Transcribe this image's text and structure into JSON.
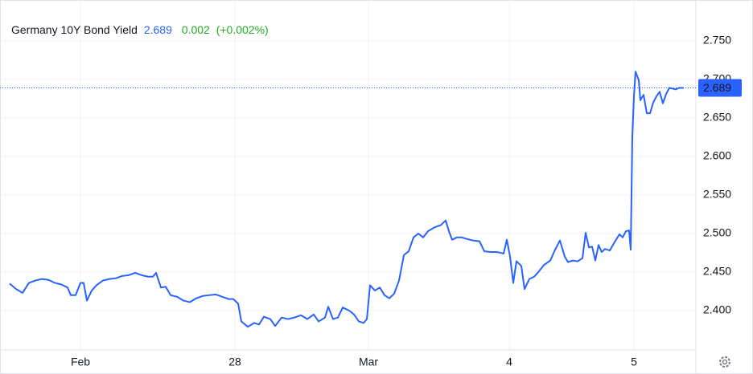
{
  "chart_data": {
    "type": "line",
    "title": "Germany 10Y Bond Yield",
    "price": 2.689,
    "change": 0.002,
    "change_percent": {
      "value": 0.002,
      "label": "(+0.002%)"
    },
    "x": [
      2,
      10,
      18,
      26,
      34,
      42,
      50,
      58,
      66,
      74,
      78,
      84,
      90,
      94,
      98,
      104,
      110,
      118,
      126,
      134,
      142,
      150,
      158,
      166,
      174,
      180,
      184,
      190,
      196,
      202,
      210,
      218,
      226,
      234,
      242,
      250,
      258,
      266,
      274,
      280,
      286,
      290,
      298,
      306,
      312,
      318,
      326,
      332,
      340,
      348,
      356,
      364,
      372,
      380,
      386,
      394,
      398,
      404,
      410,
      416,
      424,
      430,
      436,
      442,
      446,
      450,
      456,
      462,
      468,
      474,
      480,
      486,
      492,
      498,
      504,
      510,
      516,
      522,
      530,
      538,
      544,
      548,
      552,
      558,
      564,
      570,
      578,
      586,
      592,
      600,
      608,
      616,
      620,
      624,
      628,
      632,
      638,
      642,
      648,
      654,
      660,
      666,
      674,
      680,
      686,
      692,
      696,
      702,
      708,
      714,
      718,
      722,
      726,
      730,
      734,
      738,
      742,
      748,
      754,
      760,
      764,
      768,
      772,
      774,
      776,
      778,
      780,
      784,
      786,
      790,
      794,
      798,
      802,
      806,
      810,
      814,
      818,
      822,
      826,
      830,
      834,
      840
    ],
    "series": [
      {
        "name": "Germany 10Y Bond Yield",
        "color": "#2962ff",
        "values": [
          2.435,
          2.428,
          2.423,
          2.436,
          2.439,
          2.441,
          2.44,
          2.436,
          2.434,
          2.43,
          2.42,
          2.42,
          2.436,
          2.436,
          2.413,
          2.426,
          2.433,
          2.439,
          2.441,
          2.442,
          2.445,
          2.446,
          2.449,
          2.446,
          2.444,
          2.444,
          2.449,
          2.43,
          2.431,
          2.42,
          2.418,
          2.413,
          2.411,
          2.416,
          2.419,
          2.42,
          2.421,
          2.418,
          2.415,
          2.415,
          2.409,
          2.386,
          2.379,
          2.384,
          2.382,
          2.392,
          2.389,
          2.38,
          2.391,
          2.389,
          2.391,
          2.394,
          2.389,
          2.395,
          2.386,
          2.391,
          2.405,
          2.389,
          2.391,
          2.404,
          2.4,
          2.395,
          2.386,
          2.384,
          2.389,
          2.433,
          2.426,
          2.43,
          2.42,
          2.416,
          2.422,
          2.439,
          2.472,
          2.477,
          2.495,
          2.5,
          2.495,
          2.503,
          2.508,
          2.511,
          2.517,
          2.503,
          2.492,
          2.495,
          2.495,
          2.493,
          2.491,
          2.49,
          2.477,
          2.476,
          2.476,
          2.474,
          2.492,
          2.47,
          2.436,
          2.464,
          2.458,
          2.428,
          2.441,
          2.444,
          2.451,
          2.459,
          2.465,
          2.479,
          2.491,
          2.47,
          2.463,
          2.465,
          2.464,
          2.468,
          2.501,
          2.482,
          2.483,
          2.465,
          2.485,
          2.476,
          2.48,
          2.478,
          2.489,
          2.499,
          2.495,
          2.503,
          2.504,
          2.479,
          2.626,
          2.678,
          2.71,
          2.699,
          2.673,
          2.68,
          2.656,
          2.656,
          2.67,
          2.678,
          2.684,
          2.669,
          2.681,
          2.689,
          2.688,
          2.687,
          2.689,
          2.689
        ]
      }
    ],
    "xlim": [
      0,
      855
    ],
    "xticks": [
      {
        "value": 90,
        "label": "Feb"
      },
      {
        "value": 282,
        "label": "28"
      },
      {
        "value": 448,
        "label": "Mar"
      },
      {
        "value": 623,
        "label": "4"
      },
      {
        "value": 778,
        "label": "5"
      }
    ],
    "ylim": [
      2.349,
      2.803
    ],
    "yticks": [
      {
        "value": 2.4,
        "label": "2.400"
      },
      {
        "value": 2.45,
        "label": "2.450"
      },
      {
        "value": 2.5,
        "label": "2.500"
      },
      {
        "value": 2.55,
        "label": "2.550"
      },
      {
        "value": 2.6,
        "label": "2.600"
      },
      {
        "value": 2.65,
        "label": "2.650"
      },
      {
        "value": 2.7,
        "label": "2.700"
      },
      {
        "value": 2.75,
        "label": "2.750"
      }
    ],
    "grid": true,
    "up_color": "#22ab22"
  }
}
